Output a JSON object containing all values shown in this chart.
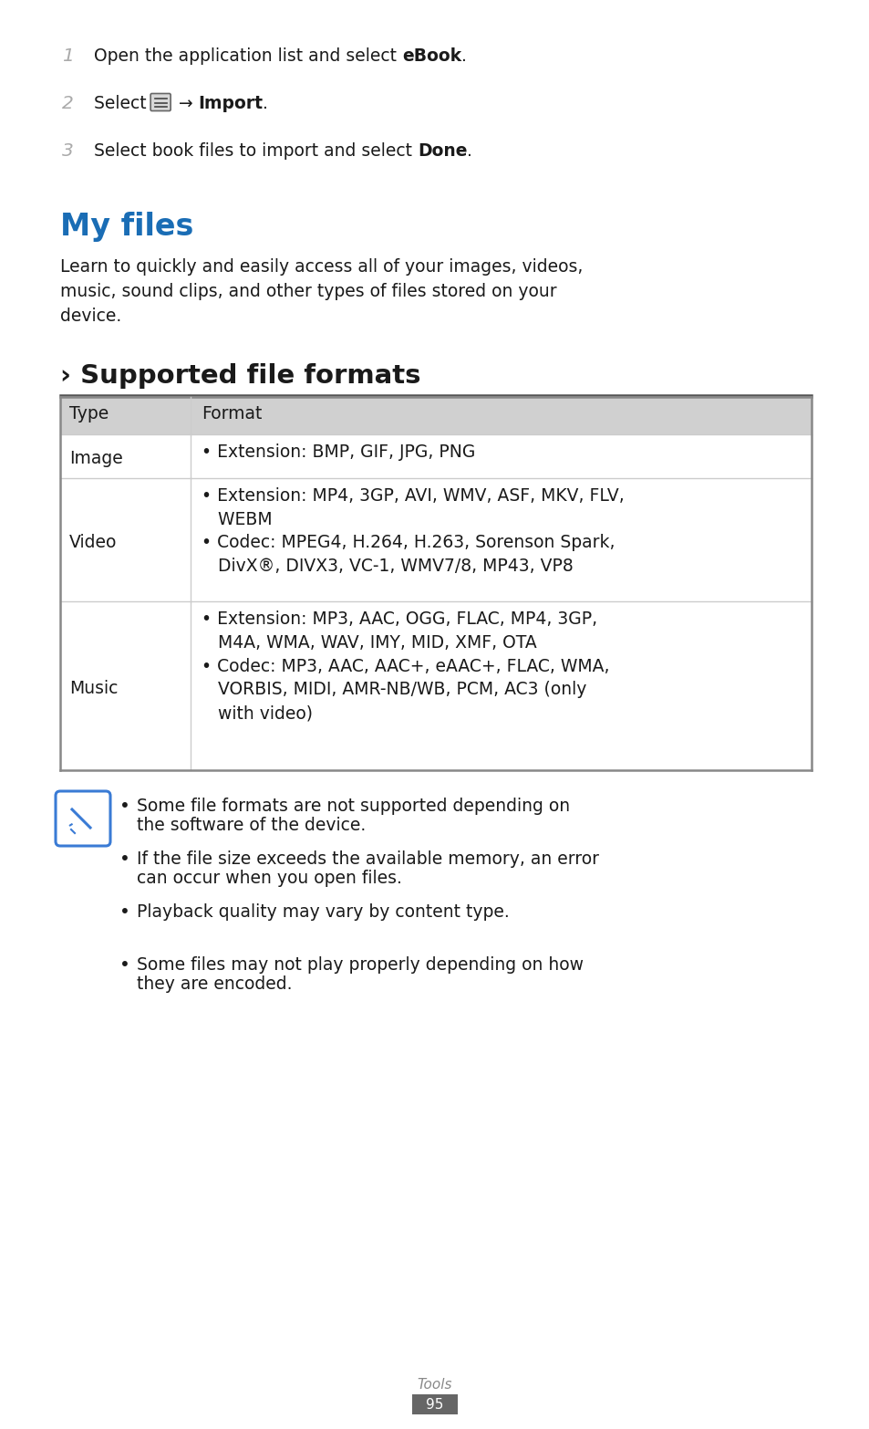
{
  "bg_color": "#ffffff",
  "section1_title": "My files",
  "section1_title_color": "#1a6db5",
  "section2_title": "› Supported file formats",
  "body_text": "Learn to quickly and easily access all of your images, videos,\nmusic, sound clips, and other types of files stored on your\ndevice.",
  "table_header_bg": "#d0d0d0",
  "table_border_color": "#888888",
  "table_light_border": "#cccccc",
  "table_rows": [
    {
      "type": "Image",
      "formats": "• Extension: BMP, GIF, JPG, PNG"
    },
    {
      "type": "Video",
      "formats": "• Extension: MP4, 3GP, AVI, WMV, ASF, MKV, FLV,\n   WEBM\n• Codec: MPEG4, H.264, H.263, Sorenson Spark,\n   DivX®, DIVX3, VC-1, WMV7/8, MP43, VP8"
    },
    {
      "type": "Music",
      "formats": "• Extension: MP3, AAC, OGG, FLAC, MP4, 3GP,\n   M4A, WMA, WAV, IMY, MID, XMF, OTA\n• Codec: MP3, AAC, AAC+, eAAC+, FLAC, WMA,\n   VORBIS, MIDI, AMR-NB/WB, PCM, AC3 (only\n   with video)"
    }
  ],
  "notes": [
    "Some file formats are not supported depending on\nthe software of the device.",
    "If the file size exceeds the available memory, an error\ncan occur when you open files.",
    "Playback quality may vary by content type.",
    "Some files may not play properly depending on how\nthey are encoded."
  ],
  "footer_label": "Tools",
  "footer_page": "95",
  "icon_border_color": "#3a7bd5",
  "gray_number_color": "#aaaaaa",
  "text_color": "#1a1a1a"
}
